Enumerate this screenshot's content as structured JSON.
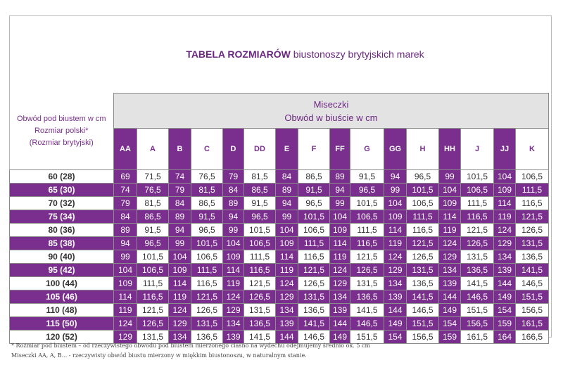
{
  "title_bold": "TABELA ROZMIARÓW",
  "title_rest": " biustonoszy brytyjskich marek",
  "corner": {
    "line1": "Obwód pod biustem w cm",
    "line2": "Rozmiar polski*",
    "line3": "(Rozmiar brytyjski)"
  },
  "header": {
    "line1": "Miseczki",
    "line2": "Obwód w biuście w cm"
  },
  "cups": [
    "AA",
    "A",
    "B",
    "C",
    "D",
    "DD",
    "E",
    "F",
    "FF",
    "G",
    "GG",
    "H",
    "HH",
    "J",
    "JJ",
    "K"
  ],
  "rows": [
    {
      "label": "60  (28)",
      "values": [
        "69",
        "71,5",
        "74",
        "76,5",
        "79",
        "81,5",
        "84",
        "86,5",
        "89",
        "91,5",
        "94",
        "96,5",
        "99",
        "101,5",
        "104",
        "106,5"
      ]
    },
    {
      "label": "65  (30)",
      "values": [
        "74",
        "76,5",
        "79",
        "81,5",
        "84",
        "86,5",
        "89",
        "91,5",
        "94",
        "96,5",
        "99",
        "101,5",
        "104",
        "106,5",
        "109",
        "111,5"
      ]
    },
    {
      "label": "70  (32)",
      "values": [
        "79",
        "81,5",
        "84",
        "86,5",
        "89",
        "91,5",
        "94",
        "96,5",
        "99",
        "101,5",
        "104",
        "106,5",
        "109",
        "111,5",
        "114",
        "116,5"
      ]
    },
    {
      "label": "75  (34)",
      "values": [
        "84",
        "86,5",
        "89",
        "91,5",
        "94",
        "96,5",
        "99",
        "101,5",
        "104",
        "106,5",
        "109",
        "111,5",
        "114",
        "116,5",
        "119",
        "121,5"
      ]
    },
    {
      "label": "80  (36)",
      "values": [
        "89",
        "91,5",
        "94",
        "96,5",
        "99",
        "101,5",
        "104",
        "106,5",
        "109",
        "111,5",
        "114",
        "116,5",
        "119",
        "121,5",
        "124",
        "126,5"
      ]
    },
    {
      "label": "85  (38)",
      "values": [
        "94",
        "96,5",
        "99",
        "101,5",
        "104",
        "106,5",
        "109",
        "111,5",
        "114",
        "116,5",
        "119",
        "121,5",
        "124",
        "126,5",
        "129",
        "131,5"
      ]
    },
    {
      "label": "90  (40)",
      "values": [
        "99",
        "101,5",
        "104",
        "106,5",
        "109",
        "111,5",
        "114",
        "116,5",
        "119",
        "121,5",
        "124",
        "126,5",
        "129",
        "131,5",
        "134",
        "136,5"
      ]
    },
    {
      "label": "95  (42)",
      "values": [
        "104",
        "106,5",
        "109",
        "111,5",
        "114",
        "116,5",
        "119",
        "121,5",
        "124",
        "126,5",
        "129",
        "131,5",
        "134",
        "136,5",
        "139",
        "141,5"
      ]
    },
    {
      "label": "100  (44)",
      "values": [
        "109",
        "111,5",
        "114",
        "116,5",
        "119",
        "121,5",
        "124",
        "126,5",
        "129",
        "131,5",
        "134",
        "136,5",
        "139",
        "141,5",
        "144",
        "146,5"
      ]
    },
    {
      "label": "105  (46)",
      "values": [
        "114",
        "116,5",
        "119",
        "121,5",
        "124",
        "126,5",
        "129",
        "131,5",
        "134",
        "136,5",
        "139",
        "141,5",
        "144",
        "146,5",
        "149",
        "151,5"
      ]
    },
    {
      "label": "110  (48)",
      "values": [
        "119",
        "121,5",
        "124",
        "126,5",
        "129",
        "131,5",
        "134",
        "136,5",
        "139",
        "141,5",
        "144",
        "146,5",
        "149",
        "151,5",
        "154",
        "156,5"
      ]
    },
    {
      "label": "115  (50)",
      "values": [
        "124",
        "126,5",
        "129",
        "131,5",
        "134",
        "136,5",
        "139",
        "141,5",
        "144",
        "146,5",
        "149",
        "151,5",
        "154",
        "156,5",
        "159",
        "161,5"
      ]
    },
    {
      "label": "120  (52)",
      "values": [
        "129",
        "131,5",
        "134",
        "136,5",
        "139",
        "141,5",
        "144",
        "146,5",
        "149",
        "151,5",
        "154",
        "156,5",
        "159",
        "161,5",
        "164",
        "166,5"
      ]
    }
  ],
  "notes": {
    "line1": "* Rozmiar pod biustem – od rzeczywistego obwodu pod biustem mierzonego ciasno na wydechu odejmujemy średnio ok. 5 cm",
    "line2": "Miseczki AA, A, B... - rzeczywisty obwód biustu mierzony w miękkim biustonoszu, w naturalnym stanie."
  },
  "colors": {
    "purple": "#7a2f8e",
    "header_gray": "#e3e3e3",
    "title": "#6a2780"
  }
}
